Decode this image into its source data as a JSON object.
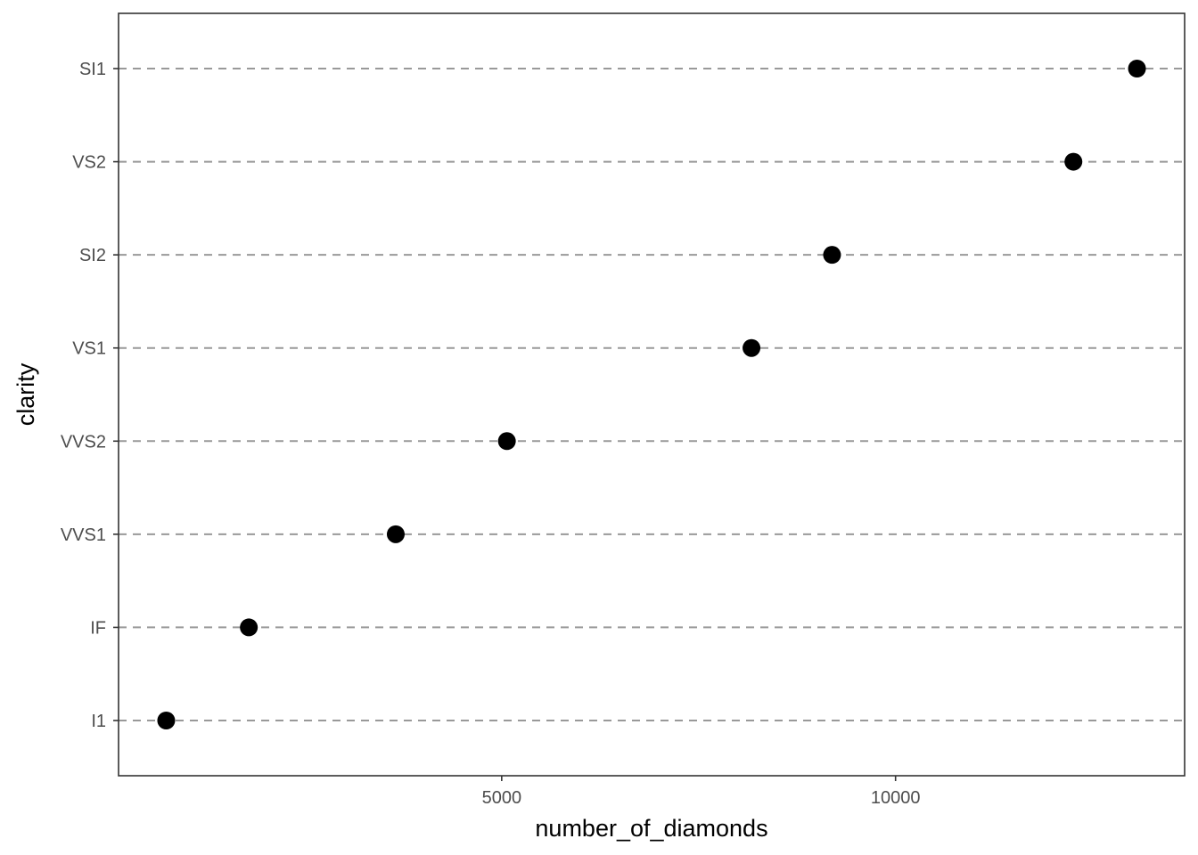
{
  "chart_data": {
    "type": "scatter",
    "title": "",
    "xlabel": "number_of_diamonds",
    "ylabel": "clarity",
    "categories": [
      "I1",
      "IF",
      "VVS1",
      "VVS2",
      "VS1",
      "SI2",
      "VS2",
      "SI1"
    ],
    "values": [
      741,
      1790,
      3655,
      5066,
      8171,
      9194,
      12258,
      13065
    ],
    "xlim": [
      136,
      13670
    ],
    "xticks": [
      5000,
      10000
    ],
    "grid": "dashed horizontal lines at each category",
    "legend": "none",
    "point_color": "#000000",
    "grid_color": "#999999"
  }
}
